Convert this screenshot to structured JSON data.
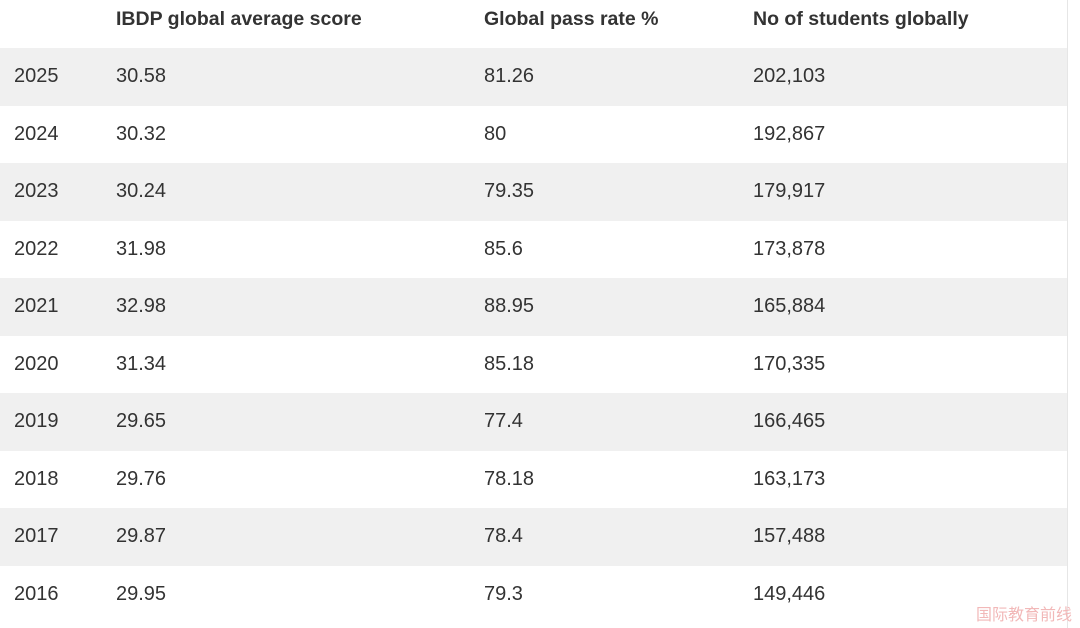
{
  "table": {
    "headers": [
      "",
      "IBDP global average score",
      "Global pass rate %",
      "No of students globally"
    ],
    "rows": [
      [
        "2025",
        "30.58",
        "81.26",
        "202,103"
      ],
      [
        "2024",
        "30.32",
        "80",
        "192,867"
      ],
      [
        "2023",
        "30.24",
        "79.35",
        "179,917"
      ],
      [
        "2022",
        "31.98",
        "85.6",
        "173,878"
      ],
      [
        "2021",
        "32.98",
        "88.95",
        "165,884"
      ],
      [
        "2020",
        "31.34",
        "85.18",
        "170,335"
      ],
      [
        "2019",
        "29.65",
        "77.4",
        "166,465"
      ],
      [
        "2018",
        "29.76",
        "78.18",
        "163,173"
      ],
      [
        "2017",
        "29.87",
        "78.4",
        "157,488"
      ],
      [
        "2016",
        "29.95",
        "79.3",
        "149,446"
      ]
    ]
  },
  "watermark": "国际教育前线",
  "colors": {
    "shaded_row": "#f0f0f0",
    "text": "#333333",
    "watermark": "#f2b8b8"
  }
}
